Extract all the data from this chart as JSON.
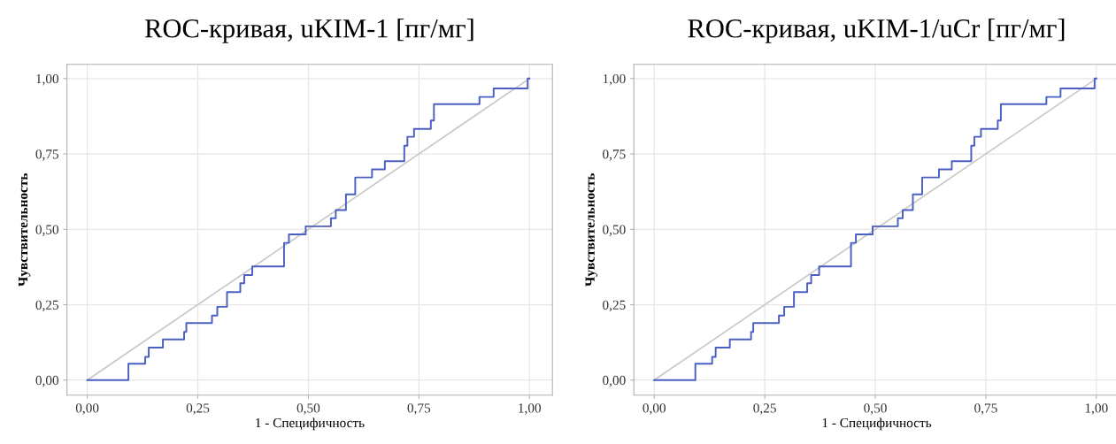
{
  "chart_data": [
    {
      "type": "step",
      "title": "ROC-кривая, uKIM-1 [пг/мг]",
      "xlabel": "1 - Специфичность",
      "ylabel": "Чувствительность",
      "series": [
        {
          "color": "#4a5fc1",
          "x": [
            0,
            0.093,
            0.131,
            0.139,
            0.171,
            0.219,
            0.224,
            0.282,
            0.294,
            0.316,
            0.346,
            0.355,
            0.373,
            0.445,
            0.456,
            0.494,
            0.551,
            0.562,
            0.585,
            0.606,
            0.644,
            0.673,
            0.717,
            0.724,
            0.739,
            0.777,
            0.784,
            0.887,
            0.919,
            0.996,
            1.0
          ],
          "values": [
            0,
            0.054,
            0.077,
            0.108,
            0.135,
            0.16,
            0.189,
            0.214,
            0.243,
            0.292,
            0.321,
            0.348,
            0.377,
            0.455,
            0.483,
            0.51,
            0.537,
            0.564,
            0.616,
            0.672,
            0.699,
            0.726,
            0.777,
            0.807,
            0.833,
            0.861,
            0.915,
            0.939,
            0.967,
            1.0,
            1.0
          ]
        },
        {
          "type": "line",
          "color": "#c8c8c8",
          "x": [
            0,
            1
          ],
          "values": [
            0,
            1
          ]
        }
      ],
      "xlim": [
        -0.046,
        1.052
      ],
      "ylim": [
        -0.05,
        1.047
      ],
      "xticks": [
        {
          "value": 0,
          "label": "0,00"
        },
        {
          "value": 0.25,
          "label": "0,25"
        },
        {
          "value": 0.5,
          "label": "0,50"
        },
        {
          "value": 0.75,
          "label": "0,75"
        },
        {
          "value": 1,
          "label": "1,00"
        }
      ],
      "yticks": [
        {
          "value": 0,
          "label": "0,00"
        },
        {
          "value": 0.25,
          "label": "0,25"
        },
        {
          "value": 0.5,
          "label": "0,50"
        },
        {
          "value": 0.75,
          "label": "0,75"
        },
        {
          "value": 1,
          "label": "1,00"
        }
      ],
      "grid": true
    },
    {
      "type": "step",
      "title": "ROC-кривая, uKIM-1/uCr [пг/мг]",
      "xlabel": "1 - Специфичность",
      "ylabel": "Чувствительность",
      "series": [
        {
          "color": "#4a5fc1",
          "x": [
            0,
            0.093,
            0.131,
            0.139,
            0.171,
            0.219,
            0.224,
            0.282,
            0.294,
            0.316,
            0.346,
            0.355,
            0.373,
            0.445,
            0.456,
            0.494,
            0.551,
            0.562,
            0.585,
            0.606,
            0.644,
            0.673,
            0.717,
            0.724,
            0.739,
            0.777,
            0.784,
            0.887,
            0.919,
            0.996,
            1.0
          ],
          "values": [
            0,
            0.054,
            0.077,
            0.108,
            0.135,
            0.16,
            0.189,
            0.214,
            0.243,
            0.292,
            0.321,
            0.348,
            0.377,
            0.455,
            0.483,
            0.51,
            0.537,
            0.564,
            0.616,
            0.672,
            0.699,
            0.726,
            0.777,
            0.807,
            0.833,
            0.861,
            0.915,
            0.939,
            0.967,
            1.0,
            1.0
          ]
        },
        {
          "type": "line",
          "color": "#c8c8c8",
          "x": [
            0,
            1
          ],
          "values": [
            0,
            1
          ]
        }
      ],
      "xlim": [
        -0.046,
        1.052
      ],
      "ylim": [
        -0.05,
        1.047
      ],
      "xticks": [
        {
          "value": 0,
          "label": "0,00"
        },
        {
          "value": 0.25,
          "label": "0,25"
        },
        {
          "value": 0.5,
          "label": "0,50"
        },
        {
          "value": 0.75,
          "label": "0,75"
        },
        {
          "value": 1,
          "label": "1,00"
        }
      ],
      "yticks": [
        {
          "value": 0,
          "label": "0,00"
        },
        {
          "value": 0.25,
          "label": "0,25"
        },
        {
          "value": 0.5,
          "label": "0,50"
        },
        {
          "value": 0.75,
          "label": "0,75"
        },
        {
          "value": 1,
          "label": "1,00"
        }
      ],
      "grid": true
    }
  ]
}
